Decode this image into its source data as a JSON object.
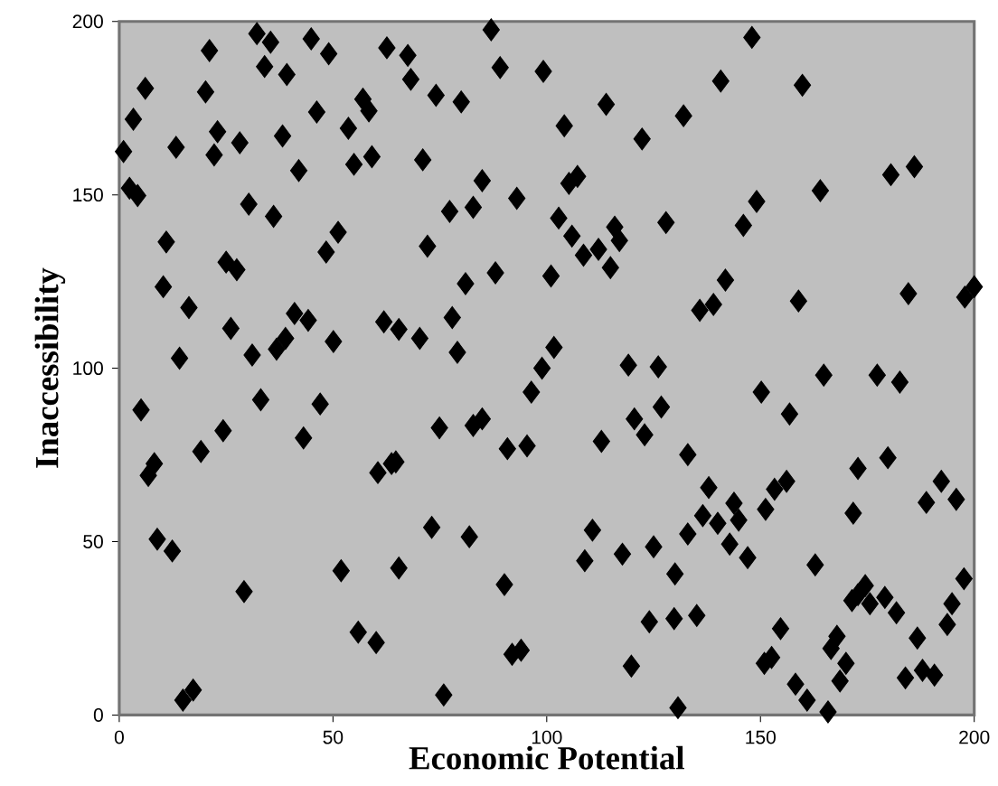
{
  "chart_data": {
    "type": "scatter",
    "xlabel": "Economic Potential",
    "ylabel": "Inaccessibility",
    "xlim": [
      0,
      200
    ],
    "ylim": [
      0,
      200
    ],
    "xticks": [
      0,
      50,
      100,
      150,
      200
    ],
    "yticks": [
      0,
      50,
      100,
      150,
      200
    ],
    "marker": "diamond",
    "color": "#000000",
    "x": [
      21.1,
      32.2,
      35.4,
      34,
      39.2,
      44.9,
      49,
      62.6,
      6.1,
      20.2,
      3.3,
      1,
      13.3,
      23,
      22.2,
      28.2,
      38.2,
      46.2,
      57,
      58.4,
      53.6,
      42,
      54.9,
      59.1,
      2.4,
      4.3,
      30.3,
      36.1,
      11,
      51.2,
      48.4,
      25,
      27.5,
      10.3,
      16.3,
      26.1,
      41,
      44.2,
      38.9,
      36.8,
      50.1,
      61.9,
      65.4,
      14.1,
      31.1,
      87,
      67.5,
      68.2,
      89.1,
      99.2,
      74.1,
      80,
      113.9,
      104.1,
      122.3,
      132,
      71,
      84.9,
      93,
      77.3,
      82.8,
      105.2,
      107.2,
      102.8,
      105.9,
      108.6,
      112.1,
      115.9,
      117,
      114.9,
      127.9,
      72.1,
      81,
      88,
      101,
      77.9,
      70.3,
      79.1,
      101.7,
      119.1,
      126.1,
      98.9,
      96.4,
      126.8,
      120.5,
      122.9,
      112.8,
      74.9,
      84.9,
      82.8,
      90.8,
      95.4,
      64.7,
      133,
      73.1,
      81.9,
      110.7,
      108.9,
      117.7,
      125,
      130,
      65.4,
      90.1,
      133,
      124,
      129.8,
      91.9,
      94,
      119.8,
      75.9,
      130.7,
      5.1,
      33.1,
      47,
      24.3,
      19.1,
      43.1,
      8.2,
      6.8,
      60.5,
      63.7,
      8.9,
      12.4,
      51.9,
      29.2,
      55.9,
      60.1,
      17.3,
      14.9,
      148,
      140.7,
      159.8,
      180.5,
      186,
      149.1,
      146,
      164,
      141.8,
      139,
      135.8,
      158.9,
      184.6,
      197.8,
      200,
      164.8,
      177.3,
      182.6,
      150.2,
      156.8,
      137.9,
      136.5,
      140,
      143.8,
      144.9,
      142.8,
      147,
      151.2,
      153.3,
      156.1,
      172.8,
      179.8,
      171.7,
      162.8,
      188.8,
      192.3,
      195.8,
      135.1,
      154.7,
      152.6,
      150.9,
      158.2,
      160.9,
      165.8,
      167.9,
      166.5,
      170,
      168.6,
      172.8,
      175.6,
      179.1,
      181.8,
      171.4,
      174.5,
      186.7,
      183.9,
      187.9,
      190.7,
      193.7,
      194.8,
      197.6
    ],
    "values": [
      191.6,
      196.5,
      194,
      187,
      184.7,
      195,
      190.7,
      192.4,
      180.7,
      179.7,
      171.8,
      162.5,
      163.7,
      168.2,
      161.5,
      165,
      167,
      173.9,
      177.6,
      174.2,
      169.2,
      157,
      158.8,
      161,
      151.9,
      149.8,
      147.3,
      143.8,
      136.4,
      139.2,
      133.5,
      130.6,
      128.4,
      123.5,
      117.5,
      111.5,
      115.8,
      113.8,
      108.6,
      105.5,
      107.7,
      113.4,
      111.2,
      102.9,
      103.8,
      197.6,
      190.2,
      183.3,
      186.7,
      185.6,
      178.7,
      176.8,
      176.1,
      169.9,
      166.1,
      172.8,
      160.1,
      154.1,
      149,
      145.2,
      146.4,
      153.3,
      155.3,
      143.3,
      138.1,
      132.6,
      134.3,
      140.7,
      136.8,
      129,
      142,
      135.2,
      124.4,
      127.5,
      126.6,
      114.6,
      108.6,
      104.6,
      106,
      100.9,
      100.4,
      100,
      93.1,
      88.8,
      85.4,
      80.8,
      78.9,
      82.8,
      85.4,
      83.5,
      76.8,
      77.6,
      73,
      75.1,
      54.1,
      51.4,
      53.3,
      44.5,
      46.4,
      48.5,
      40.7,
      42.4,
      37.6,
      52.2,
      26.9,
      27.8,
      17.5,
      18.7,
      14.1,
      5.8,
      2.1,
      88,
      90.9,
      89.7,
      82,
      76,
      79.9,
      72.5,
      69.1,
      69.9,
      72.5,
      50.7,
      47.3,
      41.6,
      35.6,
      23.9,
      20.9,
      7.2,
      4.3,
      195.4,
      182.8,
      181.6,
      155.8,
      158.1,
      148.1,
      141.2,
      151.2,
      125.4,
      118.4,
      116.7,
      119.4,
      121.5,
      120.5,
      123.5,
      98,
      98,
      96,
      93.1,
      86.8,
      65.6,
      57.5,
      55.3,
      61.1,
      56.2,
      49.3,
      45.4,
      59.3,
      65.1,
      67.4,
      71.1,
      74.2,
      58.2,
      43.3,
      61.3,
      67.4,
      62.2,
      28.7,
      24.9,
      16.6,
      14.9,
      8.9,
      4.3,
      0.9,
      22.7,
      19.2,
      14.9,
      9.8,
      34.7,
      32.1,
      33.9,
      29.5,
      33,
      37.3,
      22.2,
      10.7,
      12.9,
      11.5,
      26.1,
      32.1,
      39.3
    ]
  }
}
